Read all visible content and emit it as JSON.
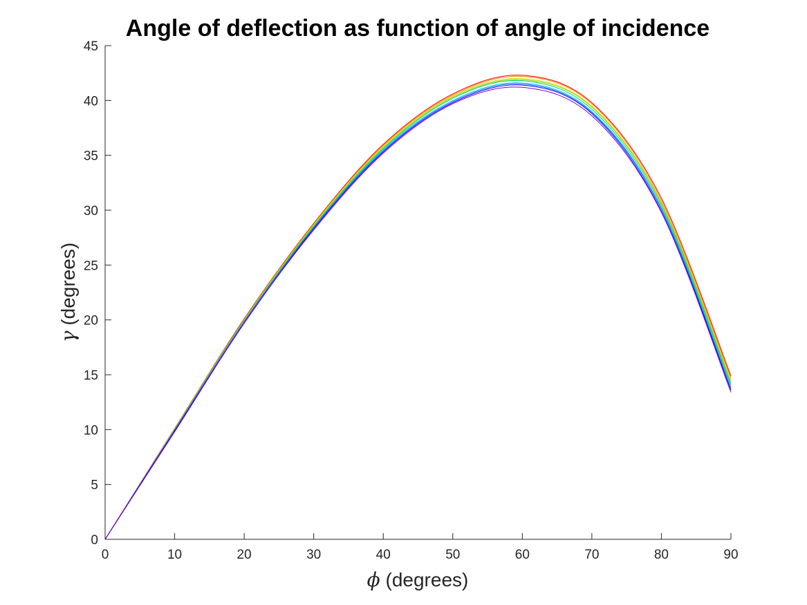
{
  "chart_data": {
    "type": "line",
    "title": "Angle of deflection as function of angle of incidence",
    "xlabel": {
      "symbol": "ϕ",
      "text": " (degrees)"
    },
    "ylabel": {
      "symbol": "γ",
      "text": " (degrees)"
    },
    "xlim": [
      0,
      90
    ],
    "ylim": [
      0,
      45
    ],
    "xticks": [
      0,
      10,
      20,
      30,
      40,
      50,
      60,
      70,
      80,
      90
    ],
    "yticks": [
      0,
      5,
      10,
      15,
      20,
      25,
      30,
      35,
      40,
      45
    ],
    "grid": false,
    "x": [
      0,
      10,
      20,
      30,
      40,
      50,
      60,
      70,
      80,
      90
    ],
    "series": [
      {
        "color": "#ff0000",
        "values": [
          0,
          10.1,
          20.1,
          28.8,
          36.0,
          40.6,
          42.3,
          39.8,
          31.1,
          14.9
        ]
      },
      {
        "color": "#ff8000",
        "values": [
          0,
          10.1,
          20.0,
          28.7,
          35.9,
          40.5,
          42.2,
          39.7,
          30.9,
          14.7
        ]
      },
      {
        "color": "#e6d800",
        "values": [
          0,
          10.0,
          20.0,
          28.7,
          35.8,
          40.4,
          42.0,
          39.5,
          30.7,
          14.5
        ]
      },
      {
        "color": "#70d800",
        "values": [
          0,
          10.0,
          19.9,
          28.6,
          35.7,
          40.3,
          41.9,
          39.4,
          30.6,
          14.3
        ]
      },
      {
        "color": "#00cc66",
        "values": [
          0,
          10.0,
          19.9,
          28.5,
          35.6,
          40.2,
          41.8,
          39.2,
          30.4,
          14.1
        ]
      },
      {
        "color": "#00c8e6",
        "values": [
          0,
          9.9,
          19.8,
          28.4,
          35.5,
          40.0,
          41.6,
          39.0,
          30.2,
          13.9
        ]
      },
      {
        "color": "#0066ff",
        "values": [
          0,
          9.9,
          19.8,
          28.4,
          35.4,
          39.9,
          41.5,
          38.9,
          30.1,
          13.7
        ]
      },
      {
        "color": "#2a00ff",
        "values": [
          0,
          9.9,
          19.7,
          28.3,
          35.3,
          39.8,
          41.4,
          38.8,
          29.9,
          13.6
        ]
      },
      {
        "color": "#7a00d6",
        "values": [
          0,
          9.8,
          19.7,
          28.2,
          35.2,
          39.7,
          41.2,
          38.6,
          29.8,
          13.4
        ]
      }
    ]
  }
}
